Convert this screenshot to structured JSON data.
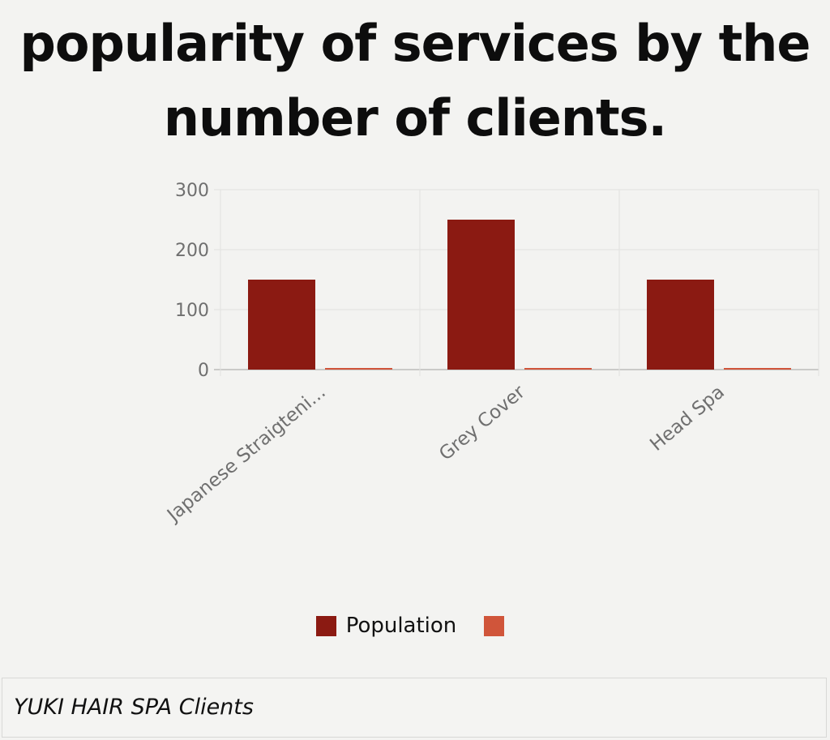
{
  "title": "popularity of services by the number of clients.",
  "chart_data": {
    "type": "bar",
    "categories": [
      "Japanese Straigteni...",
      "Grey Cover",
      "Head Spa"
    ],
    "series": [
      {
        "name": "Population",
        "values": [
          150,
          250,
          150
        ],
        "color": "#8b1a12"
      },
      {
        "name": "",
        "values": [
          0,
          0,
          0
        ],
        "color": "#d0553a"
      }
    ],
    "ylim": [
      0,
      300
    ],
    "yticks": [
      0,
      100,
      200,
      300
    ],
    "grid": true,
    "legend_position": "bottom"
  },
  "legend": {
    "series_1_label": "Population",
    "series_2_label": ""
  },
  "footer": {
    "caption": "YUKI HAIR SPA Clients"
  }
}
